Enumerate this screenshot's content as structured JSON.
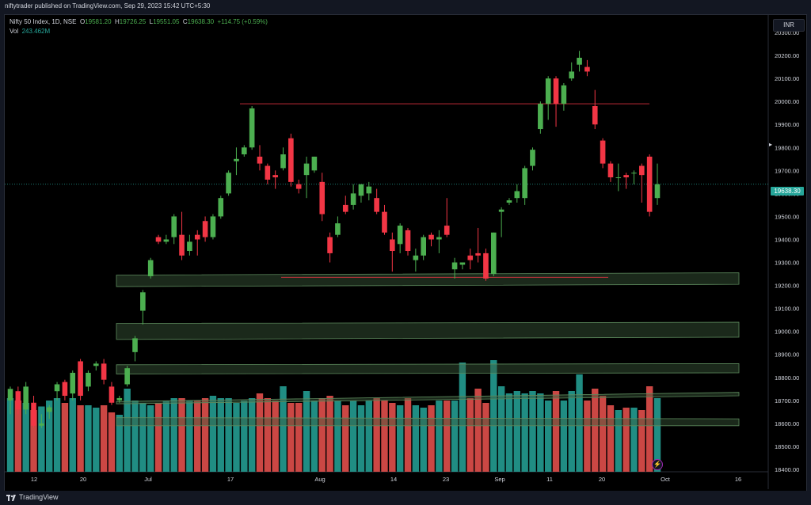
{
  "header": {
    "publisher": "niftytrader published on TradingView.com, Sep 29, 2023 15:42 UTC+5:30"
  },
  "legend": {
    "symbol": "Nifty 50 Index, 1D, NSE",
    "o_label": "O",
    "o_value": "19581.20",
    "h_label": "H",
    "h_value": "19726.25",
    "l_label": "L",
    "l_value": "19551.05",
    "c_label": "C",
    "c_value": "19638.30",
    "change": "+114.75 (+0.59%)",
    "vol_label": "Vol",
    "vol_value": "243.462M"
  },
  "currency": "INR",
  "last_price_label": "19638.30",
  "footer": {
    "brand": "TradingView"
  },
  "colors": {
    "up": "#4caf50",
    "down": "#f23645",
    "vol_up": "#26a69a",
    "vol_down": "#ef5350",
    "zone": "#3b5c3b"
  },
  "chart_data": {
    "type": "candlestick",
    "symbol": "Nifty 50 Index",
    "interval": "1D",
    "ylim": [
      18400,
      20350
    ],
    "y_ticks": [
      "20300.00",
      "20200.00",
      "20100.00",
      "20000.00",
      "19900.00",
      "19800.00",
      "19700.00",
      "19600.00",
      "19500.00",
      "19400.00",
      "19300.00",
      "19200.00",
      "19100.00",
      "19000.00",
      "18900.00",
      "18800.00",
      "18700.00",
      "18600.00",
      "18500.00",
      "18400.00"
    ],
    "x_ticks": [
      "12",
      "20",
      "Jul",
      "17",
      "Aug",
      "14",
      "23",
      "Sep",
      "11",
      "20",
      "Oct",
      "16"
    ],
    "resistance_lines": [
      19990,
      19235
    ],
    "zones": [
      {
        "y_top_start": 19245,
        "y_bot_start": 19195,
        "y_top_end": 19255,
        "y_bot_end": 19205
      },
      {
        "y_top_start": 19035,
        "y_bot_start": 18965,
        "y_top_end": 19040,
        "y_bot_end": 18975
      },
      {
        "y_top_start": 18855,
        "y_bot_start": 18815,
        "y_top_end": 18860,
        "y_bot_end": 18820
      },
      {
        "y_top_start": 18695,
        "y_bot_start": 18685,
        "y_top_end": 18735,
        "y_bot_end": 18720
      },
      {
        "y_top_start": 18625,
        "y_bot_start": 18590,
        "y_top_end": 18620,
        "y_bot_end": 18590
      }
    ],
    "candles": [
      {
        "o": 18700,
        "h": 18760,
        "l": 18640,
        "c": 18750
      },
      {
        "o": 18740,
        "h": 18760,
        "l": 18640,
        "c": 18660
      },
      {
        "o": 18660,
        "h": 18780,
        "l": 18640,
        "c": 18760
      },
      {
        "o": 18690,
        "h": 18720,
        "l": 18580,
        "c": 18590
      },
      {
        "o": 18590,
        "h": 18640,
        "l": 18580,
        "c": 18600
      },
      {
        "o": 18650,
        "h": 18680,
        "l": 18620,
        "c": 18670
      },
      {
        "o": 18740,
        "h": 18780,
        "l": 18700,
        "c": 18770
      },
      {
        "o": 18780,
        "h": 18790,
        "l": 18700,
        "c": 18720
      },
      {
        "o": 18730,
        "h": 18830,
        "l": 18700,
        "c": 18820
      },
      {
        "o": 18870,
        "h": 18880,
        "l": 18700,
        "c": 18720
      },
      {
        "o": 18760,
        "h": 18830,
        "l": 18740,
        "c": 18820
      },
      {
        "o": 18850,
        "h": 18870,
        "l": 18830,
        "c": 18860
      },
      {
        "o": 18860,
        "h": 18880,
        "l": 18770,
        "c": 18790
      },
      {
        "o": 18760,
        "h": 18780,
        "l": 18680,
        "c": 18690
      },
      {
        "o": 18700,
        "h": 18720,
        "l": 18690,
        "c": 18710
      },
      {
        "o": 18770,
        "h": 18850,
        "l": 18760,
        "c": 18840
      },
      {
        "o": 18910,
        "h": 18980,
        "l": 18870,
        "c": 18970
      },
      {
        "o": 19090,
        "h": 19180,
        "l": 19030,
        "c": 19170
      },
      {
        "o": 19240,
        "h": 19320,
        "l": 19230,
        "c": 19310
      },
      {
        "o": 19410,
        "h": 19420,
        "l": 19380,
        "c": 19390
      },
      {
        "o": 19390,
        "h": 19420,
        "l": 19380,
        "c": 19400
      },
      {
        "o": 19410,
        "h": 19510,
        "l": 19380,
        "c": 19500
      },
      {
        "o": 19420,
        "h": 19520,
        "l": 19310,
        "c": 19330
      },
      {
        "o": 19350,
        "h": 19420,
        "l": 19330,
        "c": 19390
      },
      {
        "o": 19420,
        "h": 19440,
        "l": 19330,
        "c": 19400
      },
      {
        "o": 19480,
        "h": 19500,
        "l": 19390,
        "c": 19410
      },
      {
        "o": 19410,
        "h": 19510,
        "l": 19400,
        "c": 19500
      },
      {
        "o": 19500,
        "h": 19590,
        "l": 19490,
        "c": 19580
      },
      {
        "o": 19600,
        "h": 19700,
        "l": 19590,
        "c": 19690
      },
      {
        "o": 19740,
        "h": 19800,
        "l": 19680,
        "c": 19750
      },
      {
        "o": 19770,
        "h": 19810,
        "l": 19760,
        "c": 19800
      },
      {
        "o": 19800,
        "h": 19980,
        "l": 19790,
        "c": 19970
      },
      {
        "o": 19760,
        "h": 19810,
        "l": 19700,
        "c": 19730
      },
      {
        "o": 19720,
        "h": 19730,
        "l": 19640,
        "c": 19660
      },
      {
        "o": 19680,
        "h": 19700,
        "l": 19620,
        "c": 19670
      },
      {
        "o": 19710,
        "h": 19800,
        "l": 19700,
        "c": 19770
      },
      {
        "o": 19840,
        "h": 19860,
        "l": 19630,
        "c": 19650
      },
      {
        "o": 19640,
        "h": 19660,
        "l": 19600,
        "c": 19620
      },
      {
        "o": 19680,
        "h": 19760,
        "l": 19580,
        "c": 19730
      },
      {
        "o": 19700,
        "h": 19760,
        "l": 19690,
        "c": 19760
      },
      {
        "o": 19650,
        "h": 19690,
        "l": 19480,
        "c": 19510
      },
      {
        "o": 19410,
        "h": 19430,
        "l": 19300,
        "c": 19340
      },
      {
        "o": 19420,
        "h": 19500,
        "l": 19410,
        "c": 19470
      },
      {
        "o": 19550,
        "h": 19590,
        "l": 19510,
        "c": 19520
      },
      {
        "o": 19550,
        "h": 19640,
        "l": 19530,
        "c": 19600
      },
      {
        "o": 19590,
        "h": 19630,
        "l": 19560,
        "c": 19640
      },
      {
        "o": 19600,
        "h": 19650,
        "l": 19570,
        "c": 19630
      },
      {
        "o": 19580,
        "h": 19620,
        "l": 19510,
        "c": 19520
      },
      {
        "o": 19520,
        "h": 19550,
        "l": 19420,
        "c": 19430
      },
      {
        "o": 19400,
        "h": 19430,
        "l": 19260,
        "c": 19350
      },
      {
        "o": 19380,
        "h": 19470,
        "l": 19340,
        "c": 19460
      },
      {
        "o": 19440,
        "h": 19450,
        "l": 19330,
        "c": 19350
      },
      {
        "o": 19310,
        "h": 19360,
        "l": 19260,
        "c": 19330
      },
      {
        "o": 19330,
        "h": 19420,
        "l": 19310,
        "c": 19410
      },
      {
        "o": 19420,
        "h": 19430,
        "l": 19370,
        "c": 19400
      },
      {
        "o": 19400,
        "h": 19440,
        "l": 19340,
        "c": 19410
      },
      {
        "o": 19460,
        "h": 19580,
        "l": 19410,
        "c": 19420
      },
      {
        "o": 19270,
        "h": 19320,
        "l": 19230,
        "c": 19300
      },
      {
        "o": 19290,
        "h": 19300,
        "l": 19270,
        "c": 19300
      },
      {
        "o": 19330,
        "h": 19360,
        "l": 19270,
        "c": 19310
      },
      {
        "o": 19340,
        "h": 19450,
        "l": 19300,
        "c": 19330
      },
      {
        "o": 19340,
        "h": 19360,
        "l": 19220,
        "c": 19230
      },
      {
        "o": 19250,
        "h": 19430,
        "l": 19240,
        "c": 19430
      },
      {
        "o": 19520,
        "h": 19540,
        "l": 19410,
        "c": 19530
      },
      {
        "o": 19560,
        "h": 19580,
        "l": 19550,
        "c": 19570
      },
      {
        "o": 19580,
        "h": 19640,
        "l": 19560,
        "c": 19610
      },
      {
        "o": 19580,
        "h": 19720,
        "l": 19550,
        "c": 19710
      },
      {
        "o": 19720,
        "h": 19800,
        "l": 19700,
        "c": 19790
      },
      {
        "o": 19880,
        "h": 20000,
        "l": 19860,
        "c": 19990
      },
      {
        "o": 19990,
        "h": 20110,
        "l": 19920,
        "c": 20100
      },
      {
        "o": 20100,
        "h": 20110,
        "l": 19890,
        "c": 19990
      },
      {
        "o": 19990,
        "h": 20080,
        "l": 19960,
        "c": 20070
      },
      {
        "o": 20100,
        "h": 20170,
        "l": 20090,
        "c": 20130
      },
      {
        "o": 20160,
        "h": 20220,
        "l": 20130,
        "c": 20190
      },
      {
        "o": 20150,
        "h": 20180,
        "l": 20110,
        "c": 20130
      },
      {
        "o": 19980,
        "h": 20050,
        "l": 19880,
        "c": 19900
      },
      {
        "o": 19830,
        "h": 19840,
        "l": 19710,
        "c": 19730
      },
      {
        "o": 19730,
        "h": 19740,
        "l": 19650,
        "c": 19670
      },
      {
        "o": 19670,
        "h": 19730,
        "l": 19610,
        "c": 19670
      },
      {
        "o": 19680,
        "h": 19690,
        "l": 19620,
        "c": 19670
      },
      {
        "o": 19690,
        "h": 19700,
        "l": 19640,
        "c": 19690
      },
      {
        "o": 19720,
        "h": 19730,
        "l": 19560,
        "c": 19680
      },
      {
        "o": 19760,
        "h": 19770,
        "l": 19500,
        "c": 19520
      },
      {
        "o": 19580,
        "h": 19730,
        "l": 19550,
        "c": 19640
      }
    ],
    "volume": [
      0.62,
      0.6,
      0.58,
      0.52,
      0.55,
      0.6,
      0.62,
      0.58,
      0.62,
      0.56,
      0.56,
      0.54,
      0.56,
      0.5,
      0.48,
      0.7,
      0.6,
      0.58,
      0.56,
      0.58,
      0.6,
      0.62,
      0.62,
      0.6,
      0.6,
      0.62,
      0.64,
      0.62,
      0.62,
      0.58,
      0.6,
      0.62,
      0.66,
      0.62,
      0.6,
      0.72,
      0.58,
      0.58,
      0.68,
      0.6,
      0.62,
      0.64,
      0.6,
      0.56,
      0.6,
      0.56,
      0.6,
      0.62,
      0.6,
      0.58,
      0.56,
      0.62,
      0.56,
      0.54,
      0.56,
      0.6,
      0.6,
      0.6,
      0.92,
      0.62,
      0.7,
      0.58,
      0.94,
      0.72,
      0.66,
      0.68,
      0.66,
      0.68,
      0.66,
      0.6,
      0.68,
      0.6,
      0.68,
      0.82,
      0.6,
      0.7,
      0.64,
      0.56,
      0.52,
      0.54,
      0.54,
      0.52,
      0.72,
      0.62
    ]
  }
}
